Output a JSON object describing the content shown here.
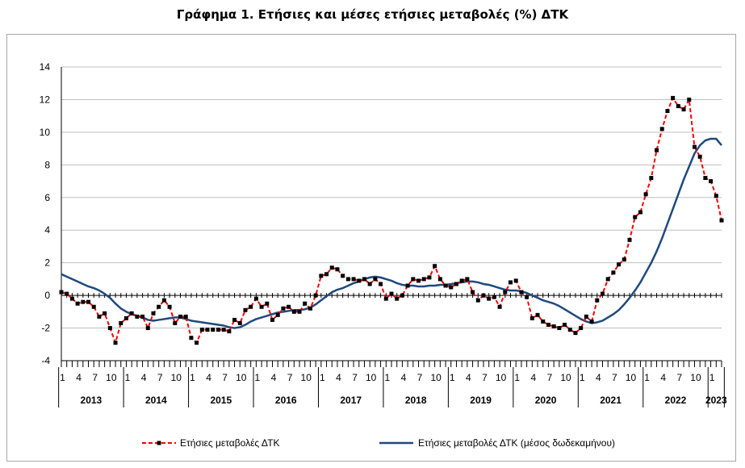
{
  "chart_data": {
    "type": "line",
    "title": "Γράφημα 1. Ετήσιες και μέσες ετήσιες μεταβολές (%) ΔΤΚ",
    "ylim": [
      -4,
      14
    ],
    "yticks": [
      "-4",
      "-2",
      "0",
      "2",
      "4",
      "6",
      "8",
      "10",
      "12",
      "14"
    ],
    "grid": true,
    "legend_position": "bottom",
    "month_labels": [
      "1",
      "4",
      "7",
      "10"
    ],
    "years": [
      "2013",
      "2014",
      "2015",
      "2016",
      "2017",
      "2018",
      "2019",
      "2020",
      "2021",
      "2022",
      "2023"
    ],
    "x_start": "2013-01",
    "x_end": "2023-04",
    "series": [
      {
        "name": "Ετήσιες μεταβολές ΔΤΚ",
        "color": "#ff0000",
        "style": "dashed with black square markers",
        "values": [
          0.2,
          0.1,
          -0.2,
          -0.5,
          -0.4,
          -0.4,
          -0.7,
          -1.3,
          -1.1,
          -2.0,
          -2.9,
          -1.7,
          -1.4,
          -1.1,
          -1.3,
          -1.3,
          -2.0,
          -1.1,
          -0.7,
          -0.3,
          -0.7,
          -1.7,
          -1.3,
          -1.3,
          -2.6,
          -2.9,
          -2.1,
          -2.1,
          -2.1,
          -2.1,
          -2.1,
          -2.2,
          -1.5,
          -1.7,
          -0.9,
          -0.7,
          -0.2,
          -0.7,
          -0.5,
          -1.5,
          -1.2,
          -0.8,
          -0.7,
          -1.0,
          -1.0,
          -0.5,
          -0.8,
          0.0,
          1.2,
          1.3,
          1.7,
          1.6,
          1.2,
          1.0,
          1.0,
          0.9,
          1.0,
          0.7,
          1.0,
          0.7,
          -0.2,
          0.1,
          -0.2,
          0.0,
          0.6,
          1.0,
          0.9,
          1.0,
          1.1,
          1.8,
          1.0,
          0.6,
          0.5,
          0.7,
          0.9,
          1.0,
          0.2,
          -0.3,
          0.0,
          -0.2,
          -0.1,
          -0.7,
          0.2,
          0.8,
          0.9,
          0.2,
          -0.1,
          -1.4,
          -1.2,
          -1.6,
          -1.8,
          -1.9,
          -2.0,
          -1.8,
          -2.1,
          -2.3,
          -2.0,
          -1.3,
          -1.6,
          -0.3,
          0.1,
          1.0,
          1.4,
          1.9,
          2.2,
          3.4,
          4.8,
          5.1,
          6.2,
          7.2,
          8.9,
          10.2,
          11.3,
          12.1,
          11.6,
          11.4,
          12.0,
          9.1,
          8.5,
          7.2,
          7.0,
          6.1,
          4.6
        ]
      },
      {
        "name": "Ετήσιες μεταβολές ΔΤΚ (μέσος δωδεκαμήνου)",
        "color": "#1f497d",
        "style": "solid",
        "values": [
          1.3,
          1.15,
          1.0,
          0.85,
          0.7,
          0.55,
          0.45,
          0.3,
          0.1,
          -0.15,
          -0.5,
          -0.8,
          -1.0,
          -1.15,
          -1.25,
          -1.35,
          -1.5,
          -1.55,
          -1.5,
          -1.45,
          -1.4,
          -1.35,
          -1.35,
          -1.45,
          -1.55,
          -1.6,
          -1.65,
          -1.7,
          -1.75,
          -1.8,
          -1.85,
          -1.95,
          -2.0,
          -1.95,
          -1.8,
          -1.6,
          -1.45,
          -1.35,
          -1.25,
          -1.15,
          -1.05,
          -1.0,
          -0.95,
          -0.9,
          -0.9,
          -0.85,
          -0.75,
          -0.55,
          -0.3,
          -0.05,
          0.2,
          0.35,
          0.45,
          0.6,
          0.75,
          0.85,
          1.0,
          1.1,
          1.15,
          1.1,
          1.0,
          0.9,
          0.75,
          0.65,
          0.6,
          0.6,
          0.55,
          0.55,
          0.6,
          0.6,
          0.65,
          0.65,
          0.7,
          0.75,
          0.8,
          0.85,
          0.85,
          0.8,
          0.7,
          0.65,
          0.55,
          0.45,
          0.35,
          0.3,
          0.3,
          0.25,
          0.15,
          0.0,
          -0.15,
          -0.3,
          -0.4,
          -0.5,
          -0.65,
          -0.85,
          -1.05,
          -1.25,
          -1.45,
          -1.6,
          -1.7,
          -1.65,
          -1.55,
          -1.35,
          -1.15,
          -0.9,
          -0.55,
          -0.15,
          0.3,
          0.8,
          1.4,
          2.0,
          2.7,
          3.5,
          4.4,
          5.3,
          6.2,
          7.1,
          7.9,
          8.7,
          9.2,
          9.5,
          9.6,
          9.6,
          9.2
        ]
      }
    ]
  }
}
